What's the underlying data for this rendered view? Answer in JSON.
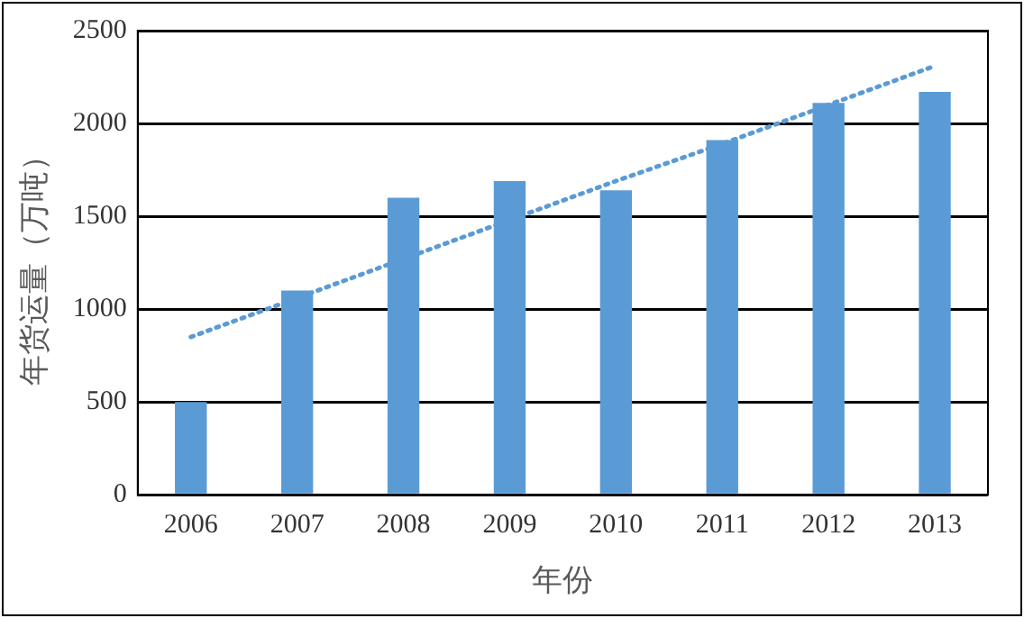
{
  "chart_data": {
    "type": "bar",
    "xlabel": "年份",
    "ylabel": "年货运量（万吨）",
    "categories": [
      "2006",
      "2007",
      "2008",
      "2009",
      "2010",
      "2011",
      "2012",
      "2013"
    ],
    "series": [
      {
        "color": "#5b9bd5",
        "values": [
          500,
          1100,
          1600,
          1690,
          1640,
          1910,
          2110,
          2170
        ]
      },
      {
        "type": "line",
        "color": "#5b9bd5",
        "values": [
          850,
          1060,
          1270,
          1480,
          1690,
          1890,
          2100,
          2310
        ],
        "line_style": "dotted",
        "marker": "none"
      }
    ],
    "ylim": [
      0,
      2500
    ],
    "yticks": [
      0,
      500,
      1000,
      1500,
      2000,
      2500
    ],
    "grid": "y",
    "legend": false
  }
}
